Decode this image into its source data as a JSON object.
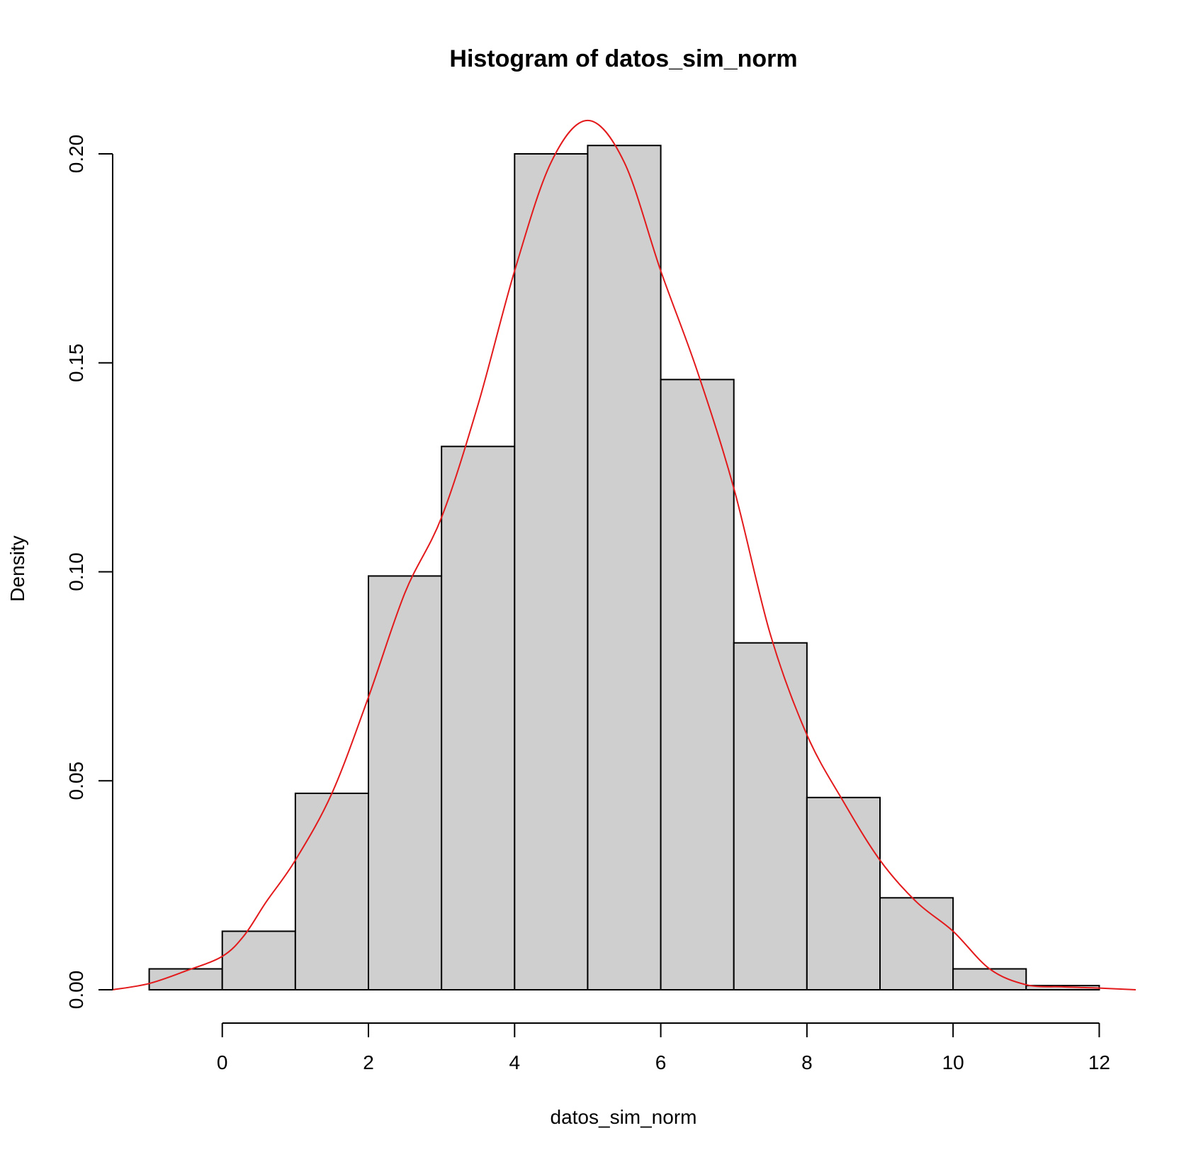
{
  "chart_data": {
    "type": "bar",
    "subtype": "histogram",
    "title": "Histogram of datos_sim_norm",
    "xlabel": "datos_sim_norm",
    "ylabel": "Density",
    "xlim": [
      -1.5,
      12.5
    ],
    "ylim": [
      0,
      0.2
    ],
    "x_ticks": [
      0,
      2,
      4,
      6,
      8,
      10,
      12
    ],
    "x_tick_labels": [
      "0",
      "2",
      "4",
      "6",
      "8",
      "10",
      "12"
    ],
    "y_ticks": [
      0,
      0.05,
      0.1,
      0.15,
      0.2
    ],
    "y_tick_labels": [
      "0.00",
      "0.05",
      "0.10",
      "0.15",
      "0.20"
    ],
    "bins": [
      {
        "x0": -1,
        "x1": 0,
        "density": 0.005
      },
      {
        "x0": 0,
        "x1": 1,
        "density": 0.014
      },
      {
        "x0": 1,
        "x1": 2,
        "density": 0.047
      },
      {
        "x0": 2,
        "x1": 3,
        "density": 0.099
      },
      {
        "x0": 3,
        "x1": 4,
        "density": 0.13
      },
      {
        "x0": 4,
        "x1": 5,
        "density": 0.2
      },
      {
        "x0": 5,
        "x1": 6,
        "density": 0.202
      },
      {
        "x0": 6,
        "x1": 7,
        "density": 0.146
      },
      {
        "x0": 7,
        "x1": 8,
        "density": 0.083
      },
      {
        "x0": 8,
        "x1": 9,
        "density": 0.046
      },
      {
        "x0": 9,
        "x1": 10,
        "density": 0.022
      },
      {
        "x0": 10,
        "x1": 11,
        "density": 0.005
      },
      {
        "x0": 11,
        "x1": 12,
        "density": 0.001
      }
    ],
    "density_curve": {
      "x": [
        -1.5,
        -1.0,
        -0.5,
        0.0,
        0.3,
        0.6,
        1.0,
        1.5,
        2.0,
        2.5,
        3.0,
        3.5,
        4.0,
        4.5,
        5.0,
        5.5,
        6.0,
        6.5,
        7.0,
        7.5,
        8.0,
        8.5,
        9.0,
        9.5,
        10.0,
        10.5,
        11.0,
        11.5,
        12.0,
        12.5
      ],
      "y": [
        0.0,
        0.0015,
        0.0045,
        0.008,
        0.013,
        0.021,
        0.031,
        0.047,
        0.07,
        0.095,
        0.113,
        0.14,
        0.172,
        0.198,
        0.208,
        0.198,
        0.172,
        0.148,
        0.12,
        0.085,
        0.061,
        0.045,
        0.031,
        0.021,
        0.014,
        0.005,
        0.0012,
        0.0007,
        0.0004,
        0.0
      ]
    },
    "colors": {
      "bar_fill": "#cfcfcf",
      "bar_stroke": "#000000",
      "density_line": "#e31a1c"
    },
    "grid": false,
    "legend": "none"
  }
}
